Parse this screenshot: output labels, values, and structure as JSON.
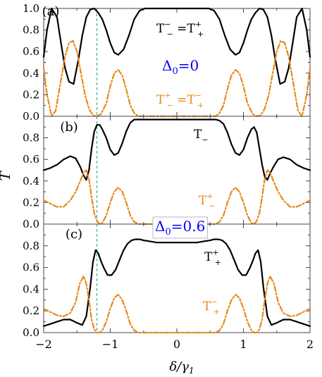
{
  "figure": {
    "ylabel": "T",
    "xlabel_main": "δ/γ",
    "xlabel_sub": "1",
    "x_ticks": [
      "−2",
      "−1",
      "0",
      "1",
      "2"
    ],
    "colors": {
      "solid": "#000000",
      "dashed": "#e8891c",
      "annotation": "#0000ff",
      "marker": "#2a9d8f",
      "frame": "#444444"
    }
  },
  "chart_data": [
    {
      "type": "line",
      "panel_label": "(a)",
      "xlim": [
        -2,
        2
      ],
      "ylim": [
        0,
        1
      ],
      "y_ticks": [
        "0.0",
        "0.2",
        "0.4",
        "0.6",
        "0.8",
        "1.0"
      ],
      "annotation": {
        "main": "Δ",
        "sub": "0",
        "rest": "=0"
      },
      "series": [
        {
          "style": "solid",
          "label_parts": {
            "a": "T",
            "a_sup": "−",
            "a_sub": "−",
            "eq": " =",
            "b": "T",
            "b_sup": "+",
            "b_sub": "+"
          },
          "x": [
            -2.0,
            -1.95,
            -1.88,
            -1.8,
            -1.74,
            -1.68,
            -1.62,
            -1.55,
            -1.48,
            -1.42,
            -1.36,
            -1.3,
            -1.24,
            -1.18,
            -1.12,
            -1.06,
            -1.0,
            -0.94,
            -0.88,
            -0.8,
            -0.72,
            -0.64,
            -0.56,
            -0.48,
            -0.4,
            -0.3,
            -0.2,
            0.0,
            0.2,
            0.3,
            0.4,
            0.48,
            0.56,
            0.64,
            0.72,
            0.8,
            0.88,
            0.94,
            1.0,
            1.06,
            1.12,
            1.18,
            1.24,
            1.3,
            1.36,
            1.42,
            1.48,
            1.55,
            1.62,
            1.68,
            1.74,
            1.8,
            1.88,
            1.95,
            2.0
          ],
          "y": [
            0.55,
            0.8,
            1.0,
            0.92,
            0.68,
            0.45,
            0.32,
            0.3,
            0.52,
            0.75,
            0.92,
            0.99,
            1.0,
            0.96,
            0.9,
            0.8,
            0.68,
            0.59,
            0.57,
            0.62,
            0.75,
            0.9,
            0.98,
            1.0,
            1.0,
            1.0,
            1.0,
            1.0,
            1.0,
            1.0,
            1.0,
            1.0,
            0.98,
            0.9,
            0.75,
            0.62,
            0.57,
            0.59,
            0.68,
            0.8,
            0.9,
            0.96,
            1.0,
            0.99,
            0.92,
            0.75,
            0.52,
            0.3,
            0.32,
            0.45,
            0.68,
            0.92,
            1.0,
            0.8,
            0.55
          ]
        },
        {
          "style": "dashed",
          "label_parts": {
            "a": "T",
            "a_sup": "+",
            "a_sub": "−",
            "eq": " =",
            "b": "T",
            "b_sup": "−",
            "b_sub": "+"
          },
          "x": [
            -2.0,
            -1.95,
            -1.88,
            -1.82,
            -1.75,
            -1.68,
            -1.62,
            -1.56,
            -1.5,
            -1.44,
            -1.38,
            -1.32,
            -1.26,
            -1.2,
            -1.14,
            -1.06,
            -1.0,
            -0.94,
            -0.88,
            -0.82,
            -0.76,
            -0.7,
            -0.64,
            -0.58,
            -0.5,
            -0.3,
            0.0,
            0.3,
            0.5,
            0.58,
            0.64,
            0.7,
            0.76,
            0.82,
            0.88,
            0.94,
            1.0,
            1.06,
            1.14,
            1.2,
            1.26,
            1.32,
            1.38,
            1.44,
            1.5,
            1.56,
            1.62,
            1.68,
            1.75,
            1.82,
            1.88,
            1.95,
            2.0
          ],
          "y": [
            0.45,
            0.2,
            0.0,
            0.05,
            0.3,
            0.55,
            0.68,
            0.7,
            0.6,
            0.4,
            0.2,
            0.07,
            0.01,
            0.0,
            0.02,
            0.12,
            0.28,
            0.4,
            0.43,
            0.38,
            0.25,
            0.1,
            0.03,
            0.0,
            0.0,
            0.0,
            0.0,
            0.0,
            0.0,
            0.0,
            0.03,
            0.1,
            0.25,
            0.38,
            0.43,
            0.4,
            0.28,
            0.12,
            0.02,
            0.0,
            0.01,
            0.07,
            0.2,
            0.4,
            0.6,
            0.7,
            0.68,
            0.55,
            0.3,
            0.05,
            0.0,
            0.2,
            0.45
          ]
        }
      ]
    },
    {
      "type": "line",
      "panel_label": "(b)",
      "xlim": [
        -2,
        2
      ],
      "ylim": [
        0,
        1
      ],
      "y_ticks": [
        "0.0",
        "0.2",
        "0.4",
        "0.6",
        "0.8",
        ""
      ],
      "series": [
        {
          "style": "solid",
          "label_parts": {
            "a": "T",
            "a_sup": "",
            "a_sub": "−"
          },
          "x": [
            -2.0,
            -1.9,
            -1.8,
            -1.7,
            -1.6,
            -1.52,
            -1.45,
            -1.4,
            -1.36,
            -1.32,
            -1.28,
            -1.24,
            -1.2,
            -1.16,
            -1.12,
            -1.06,
            -1.0,
            -0.94,
            -0.88,
            -0.82,
            -0.76,
            -0.7,
            -0.64,
            -0.58,
            -0.52,
            -0.46,
            -0.4,
            -0.3,
            0.0,
            0.3,
            0.4,
            0.46,
            0.52,
            0.58,
            0.64,
            0.7,
            0.76,
            0.82,
            0.88,
            0.94,
            1.0,
            1.06,
            1.12,
            1.16,
            1.2,
            1.24,
            1.28,
            1.32,
            1.36,
            1.4,
            1.45,
            1.52,
            1.6,
            1.7,
            1.8,
            1.9,
            2.0
          ],
          "y": [
            0.5,
            0.52,
            0.55,
            0.6,
            0.63,
            0.61,
            0.53,
            0.45,
            0.41,
            0.5,
            0.7,
            0.86,
            0.92,
            0.92,
            0.88,
            0.8,
            0.69,
            0.64,
            0.66,
            0.75,
            0.86,
            0.94,
            0.97,
            0.97,
            0.97,
            0.97,
            0.97,
            0.97,
            0.97,
            0.97,
            0.97,
            0.97,
            0.97,
            0.97,
            0.96,
            0.93,
            0.85,
            0.74,
            0.66,
            0.64,
            0.69,
            0.8,
            0.88,
            0.9,
            0.85,
            0.7,
            0.55,
            0.44,
            0.41,
            0.47,
            0.53,
            0.6,
            0.62,
            0.6,
            0.55,
            0.52,
            0.5
          ]
        },
        {
          "style": "dashed",
          "label_parts": {
            "a": "T",
            "a_sup": "+",
            "a_sub": "−"
          },
          "x": [
            -2.0,
            -1.9,
            -1.8,
            -1.7,
            -1.6,
            -1.52,
            -1.45,
            -1.4,
            -1.36,
            -1.32,
            -1.28,
            -1.24,
            -1.2,
            -1.16,
            -1.12,
            -1.06,
            -1.0,
            -0.94,
            -0.88,
            -0.82,
            -0.76,
            -0.7,
            -0.64,
            -0.58,
            -0.5,
            -0.3,
            0.0,
            0.3,
            0.5,
            0.58,
            0.64,
            0.7,
            0.76,
            0.82,
            0.88,
            0.94,
            1.0,
            1.06,
            1.12,
            1.16,
            1.2,
            1.24,
            1.28,
            1.32,
            1.36,
            1.4,
            1.45,
            1.52,
            1.6,
            1.7,
            1.8,
            1.9,
            2.0
          ],
          "y": [
            0.22,
            0.19,
            0.16,
            0.16,
            0.22,
            0.3,
            0.4,
            0.48,
            0.5,
            0.42,
            0.25,
            0.1,
            0.03,
            0.0,
            0.01,
            0.08,
            0.2,
            0.3,
            0.34,
            0.3,
            0.2,
            0.08,
            0.02,
            0.0,
            0.0,
            0.0,
            0.0,
            0.0,
            0.0,
            0.0,
            0.02,
            0.08,
            0.2,
            0.3,
            0.34,
            0.3,
            0.2,
            0.08,
            0.01,
            0.0,
            0.03,
            0.1,
            0.25,
            0.42,
            0.5,
            0.48,
            0.4,
            0.3,
            0.22,
            0.16,
            0.16,
            0.19,
            0.22
          ]
        }
      ]
    },
    {
      "type": "line",
      "panel_label": "(c)",
      "xlim": [
        -2,
        2
      ],
      "ylim": [
        0,
        1
      ],
      "y_ticks": [
        "0.0",
        "0.2",
        "0.4",
        "0.6",
        "0.8",
        ""
      ],
      "annotation": {
        "main": "Δ",
        "sub": "0",
        "rest": "=0.6"
      },
      "series": [
        {
          "style": "solid",
          "label_parts": {
            "a": "T",
            "a_sup": "+",
            "a_sub": "+"
          },
          "x": [
            -2.0,
            -1.9,
            -1.8,
            -1.7,
            -1.6,
            -1.5,
            -1.42,
            -1.36,
            -1.3,
            -1.26,
            -1.22,
            -1.18,
            -1.14,
            -1.1,
            -1.04,
            -0.98,
            -0.92,
            -0.86,
            -0.8,
            -0.74,
            -0.68,
            -0.62,
            -0.56,
            -0.5,
            -0.4,
            -0.3,
            -0.2,
            -0.1,
            0.0,
            0.1,
            0.2,
            0.3,
            0.4,
            0.5,
            0.56,
            0.62,
            0.68,
            0.74,
            0.8,
            0.86,
            0.92,
            0.98,
            1.04,
            1.1,
            1.14,
            1.18,
            1.22,
            1.26,
            1.3,
            1.36,
            1.42,
            1.5,
            1.6,
            1.7,
            1.8,
            1.9,
            2.0
          ],
          "y": [
            0.06,
            0.08,
            0.1,
            0.12,
            0.12,
            0.09,
            0.07,
            0.15,
            0.42,
            0.65,
            0.76,
            0.73,
            0.66,
            0.6,
            0.53,
            0.53,
            0.58,
            0.67,
            0.76,
            0.82,
            0.85,
            0.86,
            0.86,
            0.85,
            0.84,
            0.83,
            0.83,
            0.83,
            0.83,
            0.83,
            0.83,
            0.83,
            0.84,
            0.85,
            0.86,
            0.86,
            0.85,
            0.82,
            0.76,
            0.67,
            0.58,
            0.53,
            0.53,
            0.6,
            0.66,
            0.73,
            0.76,
            0.65,
            0.42,
            0.15,
            0.07,
            0.09,
            0.12,
            0.12,
            0.1,
            0.08,
            0.06
          ]
        },
        {
          "style": "dashed",
          "label_parts": {
            "a": "T",
            "a_sup": "−",
            "a_sub": "+"
          },
          "x": [
            -2.0,
            -1.9,
            -1.8,
            -1.7,
            -1.6,
            -1.52,
            -1.46,
            -1.4,
            -1.36,
            -1.32,
            -1.28,
            -1.24,
            -1.2,
            -1.16,
            -1.12,
            -1.06,
            -1.0,
            -0.94,
            -0.88,
            -0.82,
            -0.76,
            -0.7,
            -0.64,
            -0.58,
            -0.5,
            -0.3,
            0.0,
            0.3,
            0.5,
            0.58,
            0.64,
            0.7,
            0.76,
            0.82,
            0.88,
            0.94,
            1.0,
            1.06,
            1.12,
            1.16,
            1.2,
            1.24,
            1.28,
            1.32,
            1.36,
            1.4,
            1.46,
            1.52,
            1.6,
            1.7,
            1.8,
            1.9,
            2.0
          ],
          "y": [
            0.22,
            0.19,
            0.16,
            0.15,
            0.18,
            0.28,
            0.45,
            0.52,
            0.45,
            0.3,
            0.12,
            0.03,
            0.0,
            0.0,
            0.02,
            0.1,
            0.22,
            0.32,
            0.35,
            0.3,
            0.2,
            0.08,
            0.02,
            0.0,
            0.0,
            0.0,
            0.0,
            0.0,
            0.0,
            0.0,
            0.02,
            0.08,
            0.2,
            0.3,
            0.35,
            0.32,
            0.22,
            0.1,
            0.02,
            0.0,
            0.0,
            0.03,
            0.12,
            0.3,
            0.45,
            0.52,
            0.45,
            0.28,
            0.18,
            0.15,
            0.16,
            0.19,
            0.22
          ]
        }
      ]
    }
  ]
}
